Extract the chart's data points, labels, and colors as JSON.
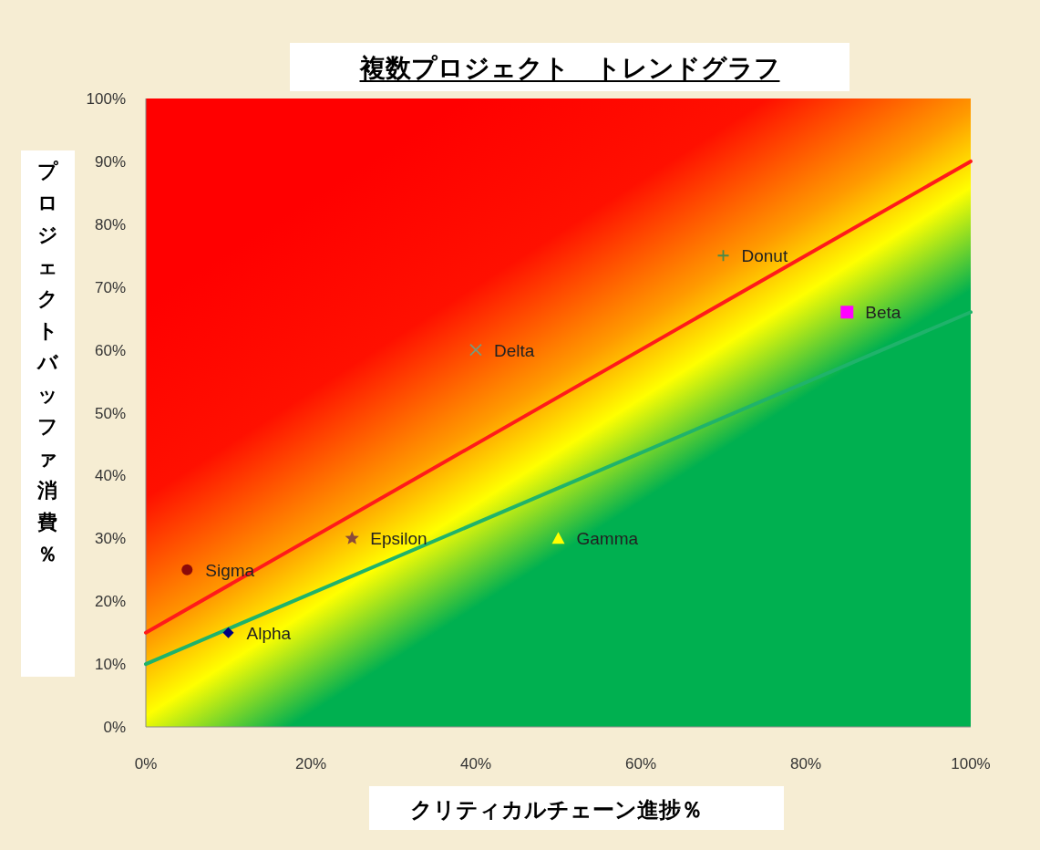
{
  "chart_data": {
    "type": "scatter",
    "title": "複数プロジェクト　トレンドグラフ",
    "xlabel": "クリティカルチェーン進捗％",
    "ylabel": "プロジェクトバッファ消費％",
    "xlim": [
      0,
      100
    ],
    "ylim": [
      0,
      100
    ],
    "xticks": [
      {
        "value": 0,
        "label": "0%"
      },
      {
        "value": 20,
        "label": "20%"
      },
      {
        "value": 40,
        "label": "40%"
      },
      {
        "value": 60,
        "label": "60%"
      },
      {
        "value": 80,
        "label": "80%"
      },
      {
        "value": 100,
        "label": "100%"
      }
    ],
    "yticks": [
      {
        "value": 0,
        "label": "0%"
      },
      {
        "value": 10,
        "label": "10%"
      },
      {
        "value": 20,
        "label": "20%"
      },
      {
        "value": 30,
        "label": "30%"
      },
      {
        "value": 40,
        "label": "40%"
      },
      {
        "value": 50,
        "label": "50%"
      },
      {
        "value": 60,
        "label": "60%"
      },
      {
        "value": 70,
        "label": "70%"
      },
      {
        "value": 80,
        "label": "80%"
      },
      {
        "value": 90,
        "label": "90%"
      },
      {
        "value": 100,
        "label": "100%"
      }
    ],
    "grid": false,
    "series": [
      {
        "type": "line",
        "color": "#ff1a1a",
        "x": [
          0,
          100
        ],
        "values": [
          15,
          90
        ],
        "line_style": "solid"
      },
      {
        "type": "line",
        "color": "#1fb36b",
        "x": [
          0,
          100
        ],
        "values": [
          10,
          66
        ],
        "line_style": "solid"
      },
      {
        "name": "Sigma",
        "color": "#8b0a0a",
        "x": [
          5
        ],
        "values": [
          25
        ],
        "marker": "circle"
      },
      {
        "name": "Alpha",
        "color": "#000080",
        "x": [
          10
        ],
        "values": [
          15
        ],
        "marker": "diamond"
      },
      {
        "name": "Epsilon",
        "color": "#8b4a3a",
        "x": [
          25
        ],
        "values": [
          30
        ],
        "marker": "star"
      },
      {
        "name": "Delta",
        "color": "#7a9a7a",
        "x": [
          40
        ],
        "values": [
          60
        ],
        "marker": "x"
      },
      {
        "name": "Gamma",
        "color": "#ffff00",
        "x": [
          50
        ],
        "values": [
          30
        ],
        "marker": "triangle"
      },
      {
        "name": "Donut",
        "color": "#4a8a4a",
        "x": [
          70
        ],
        "values": [
          75
        ],
        "marker": "cross"
      },
      {
        "name": "Beta",
        "color": "#ff00ff",
        "x": [
          85
        ],
        "values": [
          66
        ],
        "marker": "square"
      }
    ]
  }
}
